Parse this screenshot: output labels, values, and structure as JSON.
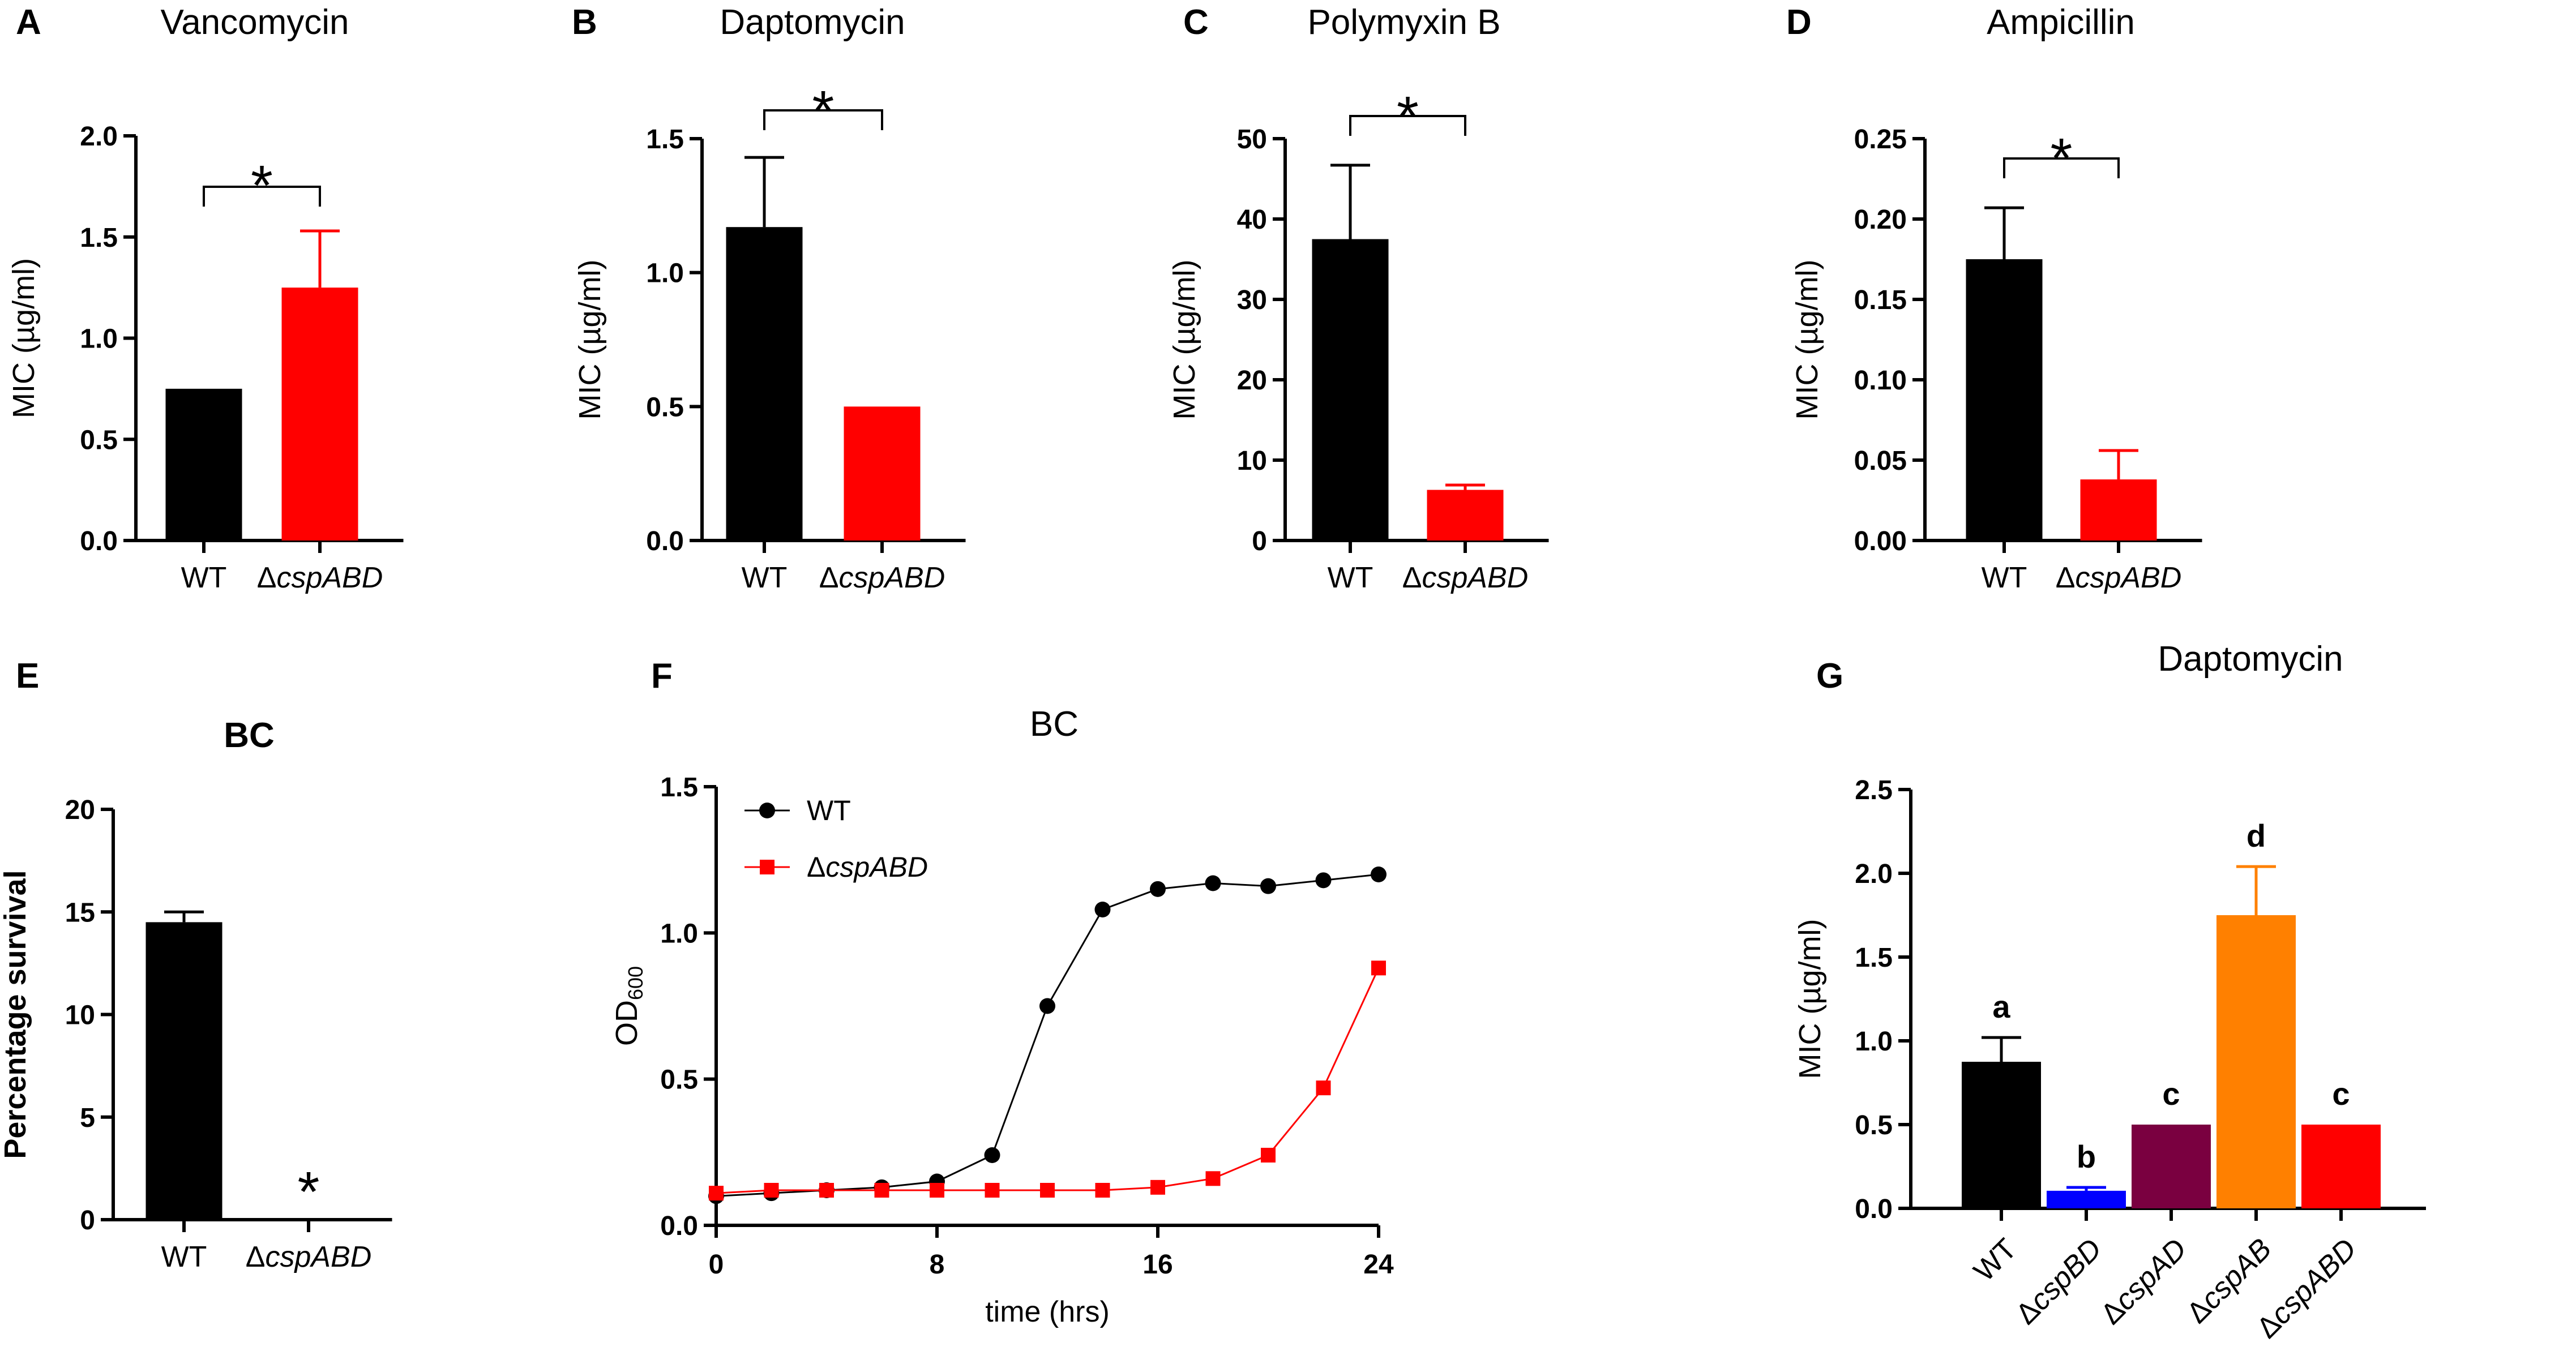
{
  "chart_data": [
    {
      "panel": "A",
      "type": "bar",
      "title": "Vancomycin",
      "ylabel": "MIC (µg/ml)",
      "ylim": [
        0,
        2.0
      ],
      "yticks": [
        "0.0",
        "0.5",
        "1.0",
        "1.5",
        "2.0"
      ],
      "ytick_values": [
        0,
        0.5,
        1.0,
        1.5,
        2.0
      ],
      "categories": [
        "WT",
        "ΔcspABD"
      ],
      "values": [
        0.75,
        1.25
      ],
      "errors": [
        0,
        0.28
      ],
      "colors": [
        "#000000",
        "#ff0000"
      ],
      "annotation": "*"
    },
    {
      "panel": "B",
      "type": "bar",
      "title": "Daptomycin",
      "ylabel": "MIC (µg/ml)",
      "ylim": [
        0,
        1.5
      ],
      "yticks": [
        "0.0",
        "0.5",
        "1.0",
        "1.5"
      ],
      "ytick_values": [
        0,
        0.5,
        1.0,
        1.5
      ],
      "categories": [
        "WT",
        "ΔcspABD"
      ],
      "values": [
        1.17,
        0.5
      ],
      "errors": [
        0.26,
        0
      ],
      "colors": [
        "#000000",
        "#ff0000"
      ],
      "annotation": "*"
    },
    {
      "panel": "C",
      "type": "bar",
      "title": "Polymyxin B",
      "ylabel": "MIC (µg/ml)",
      "ylim": [
        0,
        50
      ],
      "yticks": [
        "0",
        "10",
        "20",
        "30",
        "40",
        "50"
      ],
      "ytick_values": [
        0,
        10,
        20,
        30,
        40,
        50
      ],
      "categories": [
        "WT",
        "ΔcspABD"
      ],
      "values": [
        37.5,
        6.3
      ],
      "errors": [
        9.2,
        0.6
      ],
      "colors": [
        "#000000",
        "#ff0000"
      ],
      "annotation": "*"
    },
    {
      "panel": "D",
      "type": "bar",
      "title": "Ampicillin",
      "ylabel": "MIC (µg/ml)",
      "ylim": [
        0,
        0.25
      ],
      "yticks": [
        "0.00",
        "0.05",
        "0.10",
        "0.15",
        "0.20",
        "0.25"
      ],
      "ytick_values": [
        0,
        0.05,
        0.1,
        0.15,
        0.2,
        0.25
      ],
      "categories": [
        "WT",
        "ΔcspABD"
      ],
      "values": [
        0.175,
        0.038
      ],
      "errors": [
        0.032,
        0.018
      ],
      "colors": [
        "#000000",
        "#ff0000"
      ],
      "annotation": "*"
    },
    {
      "panel": "E",
      "type": "bar",
      "title": "BC",
      "ylabel": "Percentage survival",
      "ylim": [
        0,
        20
      ],
      "yticks": [
        "0",
        "5",
        "10",
        "15",
        "20"
      ],
      "ytick_values": [
        0,
        5,
        10,
        15,
        20
      ],
      "categories": [
        "WT",
        "ΔcspABD"
      ],
      "values": [
        14.5,
        0
      ],
      "errors": [
        0.5,
        0
      ],
      "colors": [
        "#000000",
        "#ff0000"
      ],
      "annotation": "*"
    },
    {
      "panel": "F",
      "type": "line",
      "title": "BC",
      "xlabel": "time (hrs)",
      "ylabel": "OD",
      "ylabel_sub": "600",
      "xlim": [
        0,
        24
      ],
      "ylim": [
        0,
        1.5
      ],
      "xticks": [
        "0",
        "8",
        "16",
        "24"
      ],
      "xtick_values": [
        0,
        8,
        16,
        24
      ],
      "yticks": [
        "0.0",
        "0.5",
        "1.0",
        "1.5"
      ],
      "ytick_values": [
        0,
        0.5,
        1.0,
        1.5
      ],
      "x": [
        0,
        2,
        4,
        6,
        8,
        10,
        12,
        14,
        16,
        18,
        20,
        22,
        24
      ],
      "series": [
        {
          "name": "WT",
          "color": "#000000",
          "marker": "circle",
          "values": [
            0.1,
            0.11,
            0.12,
            0.13,
            0.15,
            0.24,
            0.75,
            1.08,
            1.15,
            1.17,
            1.16,
            1.18,
            1.2
          ]
        },
        {
          "name": "ΔcspABD",
          "color": "#ff0000",
          "marker": "square",
          "values": [
            0.11,
            0.12,
            0.12,
            0.12,
            0.12,
            0.12,
            0.12,
            0.12,
            0.13,
            0.16,
            0.24,
            0.47,
            0.88
          ]
        }
      ]
    },
    {
      "panel": "G",
      "type": "bar",
      "title": "Daptomycin",
      "ylabel": "MIC (µg/ml)",
      "ylim": [
        0,
        2.5
      ],
      "yticks": [
        "0.0",
        "0.5",
        "1.0",
        "1.5",
        "2.0",
        "2.5"
      ],
      "ytick_values": [
        0,
        0.5,
        1.0,
        1.5,
        2.0,
        2.5
      ],
      "categories": [
        "WT",
        "ΔcspBD",
        "ΔcspAD",
        "ΔcspAB",
        "ΔcspABD"
      ],
      "values": [
        0.875,
        0.105,
        0.5,
        1.75,
        0.5
      ],
      "errors": [
        0.145,
        0.02,
        0,
        0.29,
        0
      ],
      "colors": [
        "#000000",
        "#0000ff",
        "#7a0040",
        "#ff8000",
        "#ff0000"
      ],
      "letters": [
        "a",
        "b",
        "c",
        "d",
        "c"
      ]
    }
  ]
}
